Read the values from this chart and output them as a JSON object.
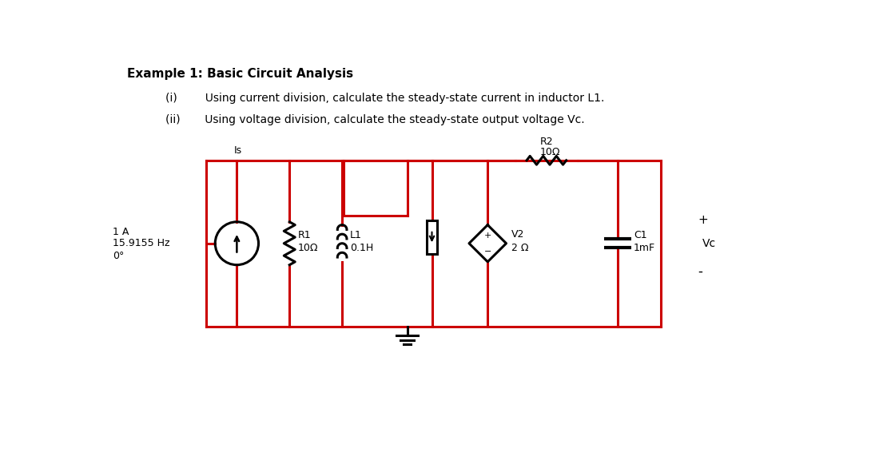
{
  "title": "Example 1: Basic Circuit Analysis",
  "item_i": "(i)        Using current division, calculate the steady-state current in inductor L1.",
  "item_ii": "(ii)       Using voltage division, calculate the steady-state output voltage Vc.",
  "bg_color": "#ffffff",
  "rc": "#cc0000",
  "cc": "#000000",
  "source_label2": "Is",
  "src_text_1": "1 A",
  "src_text_2": "15.9155 Hz",
  "src_text_3": "0°",
  "R1_label1": "R1",
  "R1_label2": "10Ω",
  "L1_label1": "L1",
  "L1_label2": "0.1H",
  "R2_label1": "R2",
  "R2_label2": "10Ω",
  "V2_label1": "V2",
  "V2_label2": "2 Ω",
  "C1_label1": "C1",
  "C1_label2": "1mF",
  "Vc_label": "Vc",
  "plus": "+",
  "minus": "-"
}
